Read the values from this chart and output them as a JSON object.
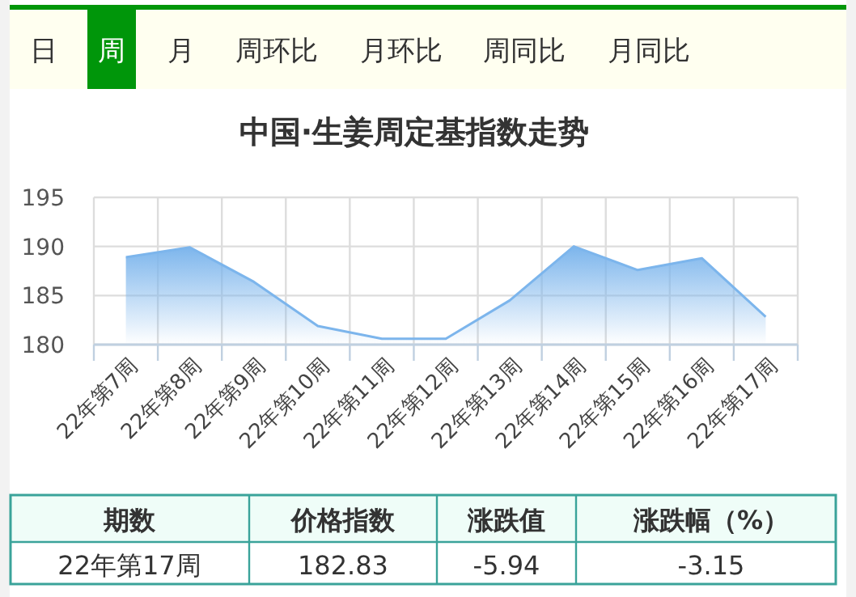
{
  "chart_data": {
    "type": "area",
    "title": "中国·生姜周定基指数走势",
    "categories": [
      "22年第7周",
      "22年第8周",
      "22年第9周",
      "22年第10周",
      "22年第11周",
      "22年第12周",
      "22年第13周",
      "22年第14周",
      "22年第15周",
      "22年第16周",
      "22年第17周"
    ],
    "values": [
      188.9,
      189.9,
      186.4,
      181.9,
      180.6,
      180.6,
      184.5,
      190.0,
      187.6,
      188.8,
      182.83
    ],
    "color": "#7cb5ec",
    "ylim": [
      180,
      195
    ],
    "yticks": [
      180,
      185,
      190,
      195
    ],
    "grid": true,
    "annotations": [
      "日",
      "周",
      "月",
      "周环比",
      "月环比",
      "周同比",
      "月同比",
      "期数",
      "价格指数",
      "涨跌值",
      "涨跌幅（%）",
      "22年第17周",
      "182.83",
      "-5.94",
      "-3.15"
    ]
  }
}
